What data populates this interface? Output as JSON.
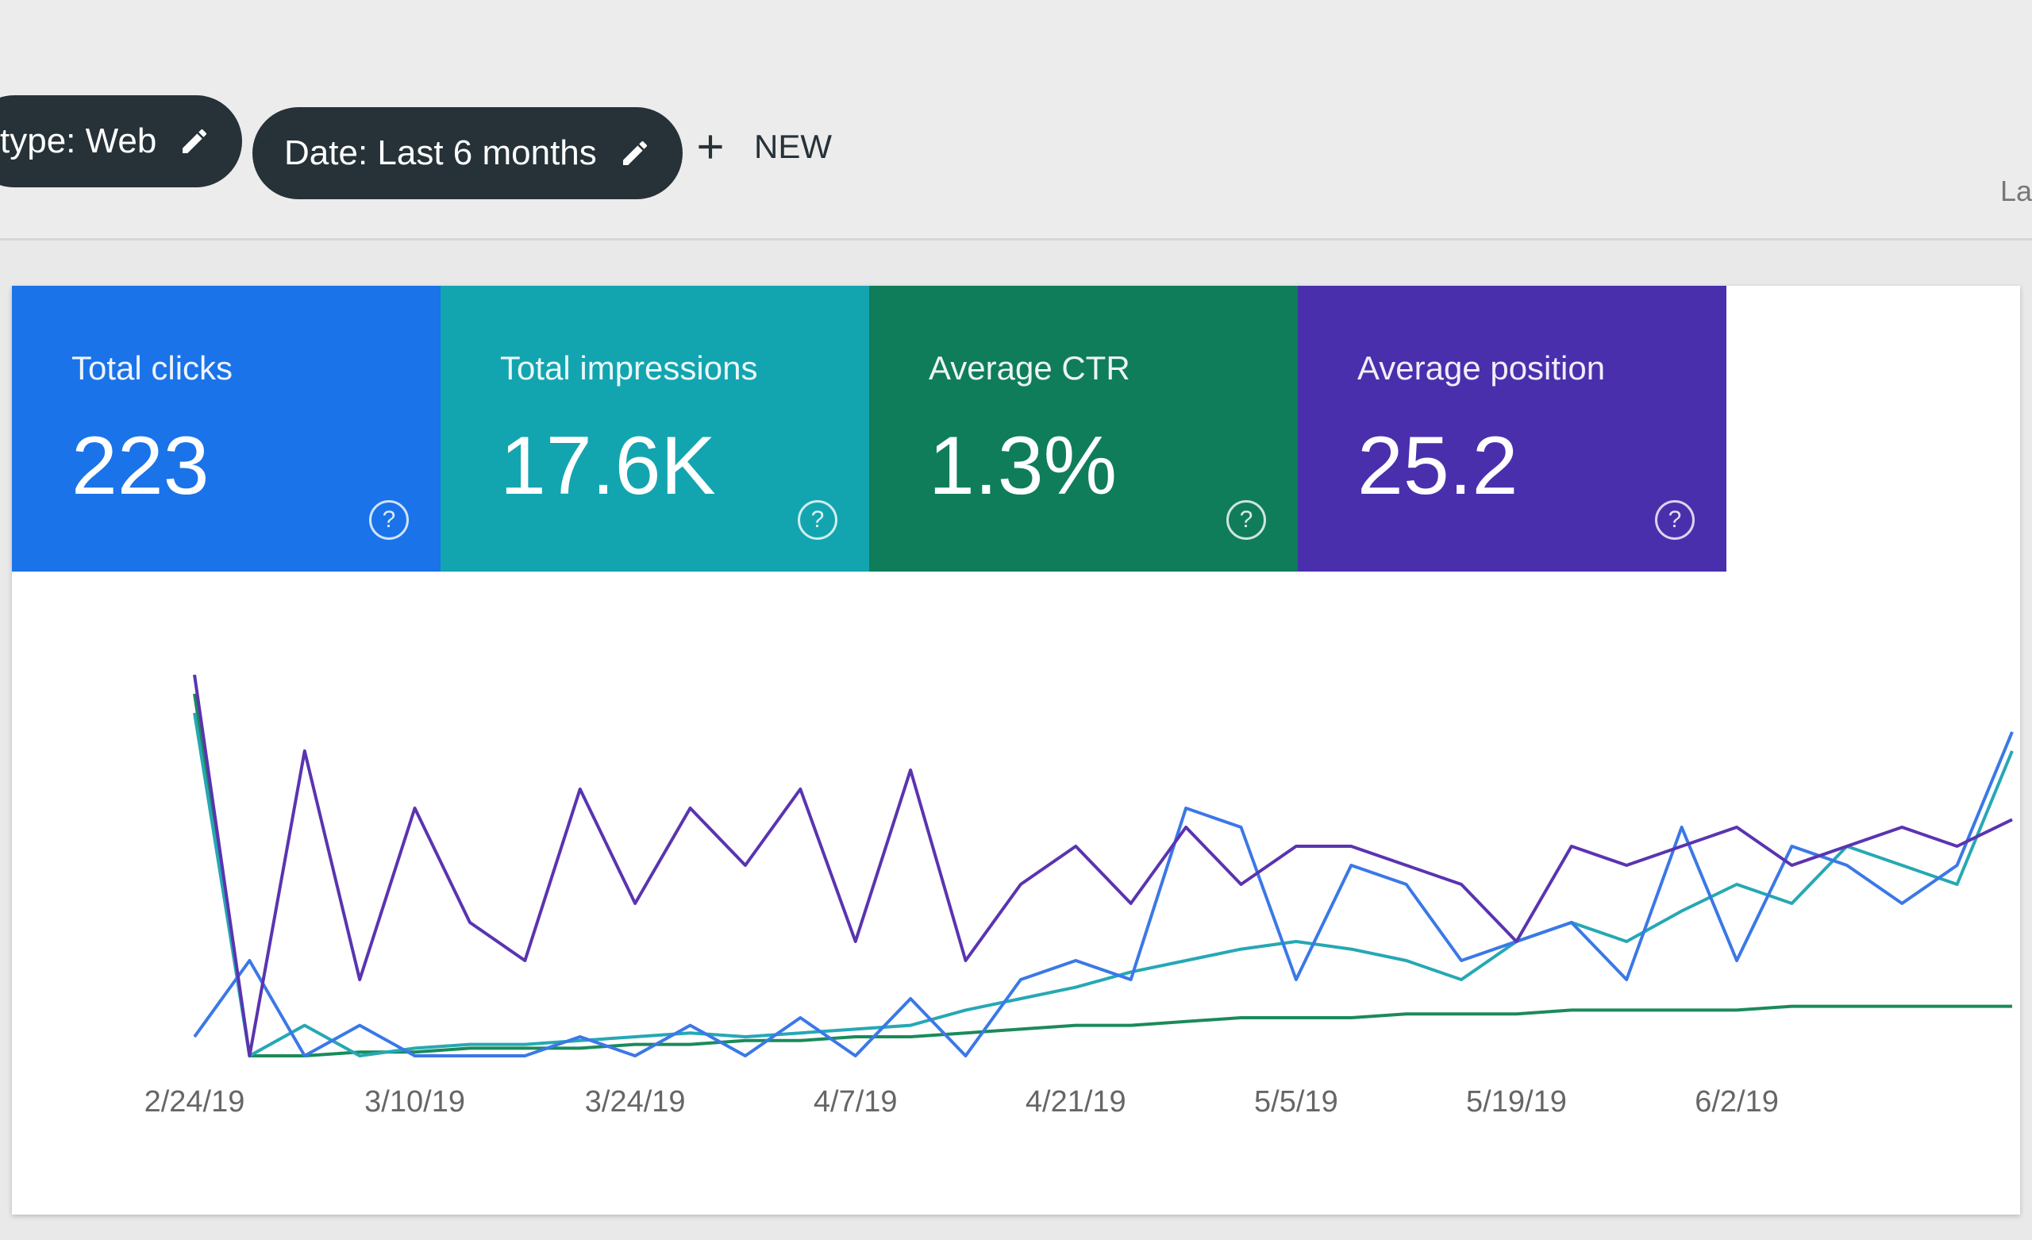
{
  "filters": [
    {
      "label": "type: Web"
    },
    {
      "label": "Date: Last 6 months"
    }
  ],
  "new_button": "NEW",
  "right_edge_text": "La",
  "metrics": [
    {
      "label": "Total clicks",
      "value": "223",
      "color": "#1a73e8"
    },
    {
      "label": "Total impressions",
      "value": "17.6K",
      "color": "#12a5b0"
    },
    {
      "label": "Average CTR",
      "value": "1.3%",
      "color": "#0f7d5a"
    },
    {
      "label": "Average position",
      "value": "25.2",
      "color": "#4a2fad"
    }
  ],
  "chart_data": {
    "type": "line",
    "categories": [
      "2/24/19",
      null,
      null,
      null,
      "3/10/19",
      null,
      null,
      null,
      "3/24/19",
      null,
      null,
      null,
      "4/7/19",
      null,
      null,
      null,
      "4/21/19",
      null,
      null,
      null,
      "5/5/19",
      null,
      null,
      null,
      "5/19/19",
      null,
      null,
      null,
      "6/2/19",
      null,
      null,
      null,
      null,
      null
    ],
    "ylim": [
      0,
      100
    ],
    "series": [
      {
        "color": "#1b8a5a",
        "values": [
          95,
          0,
          0,
          1,
          1,
          2,
          2,
          2,
          3,
          3,
          4,
          4,
          5,
          5,
          6,
          7,
          8,
          8,
          9,
          10,
          10,
          10,
          11,
          11,
          11,
          12,
          12,
          12,
          12,
          13,
          13,
          13,
          13,
          13
        ]
      },
      {
        "color": "#26a8b4",
        "values": [
          90,
          0,
          8,
          0,
          2,
          3,
          3,
          4,
          5,
          6,
          5,
          6,
          7,
          8,
          12,
          15,
          18,
          22,
          25,
          28,
          30,
          28,
          25,
          20,
          30,
          35,
          30,
          38,
          45,
          40,
          55,
          50,
          45,
          80
        ]
      },
      {
        "color": "#3b78e7",
        "values": [
          5,
          25,
          0,
          8,
          0,
          0,
          0,
          5,
          0,
          8,
          0,
          10,
          0,
          15,
          0,
          20,
          25,
          20,
          65,
          60,
          20,
          50,
          45,
          25,
          30,
          35,
          20,
          60,
          25,
          55,
          50,
          40,
          50,
          85
        ]
      },
      {
        "color": "#5a34b0",
        "values": [
          100,
          0,
          80,
          20,
          65,
          35,
          25,
          70,
          40,
          65,
          50,
          70,
          30,
          75,
          25,
          45,
          55,
          40,
          60,
          45,
          55,
          55,
          50,
          45,
          30,
          55,
          50,
          55,
          60,
          50,
          55,
          60,
          55,
          62
        ]
      }
    ]
  }
}
